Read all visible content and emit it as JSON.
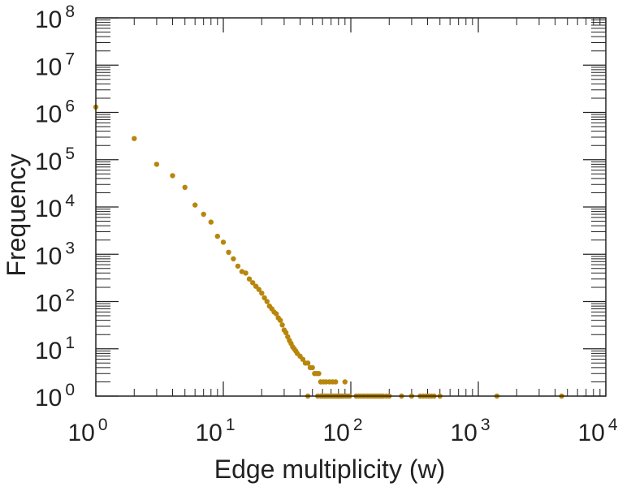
{
  "chart_data": {
    "type": "scatter",
    "title": "",
    "xlabel": "Edge multiplicity (w)",
    "ylabel": "Frequency",
    "x_scale": "log",
    "y_scale": "log",
    "xlim": [
      1,
      10000
    ],
    "ylim": [
      1,
      100000000
    ],
    "x_ticks": [
      {
        "base": "10",
        "exp": "0",
        "value": 1
      },
      {
        "base": "10",
        "exp": "1",
        "value": 10
      },
      {
        "base": "10",
        "exp": "2",
        "value": 100
      },
      {
        "base": "10",
        "exp": "3",
        "value": 1000
      },
      {
        "base": "10",
        "exp": "4",
        "value": 10000
      }
    ],
    "y_ticks": [
      {
        "base": "10",
        "exp": "0",
        "value": 1
      },
      {
        "base": "10",
        "exp": "1",
        "value": 10
      },
      {
        "base": "10",
        "exp": "2",
        "value": 100
      },
      {
        "base": "10",
        "exp": "3",
        "value": 1000
      },
      {
        "base": "10",
        "exp": "4",
        "value": 10000
      },
      {
        "base": "10",
        "exp": "5",
        "value": 100000
      },
      {
        "base": "10",
        "exp": "6",
        "value": 1000000
      },
      {
        "base": "10",
        "exp": "7",
        "value": 10000000
      },
      {
        "base": "10",
        "exp": "8",
        "value": 100000000
      }
    ],
    "grid": false,
    "marker_color": "#b8860b",
    "frame_color": "#222222",
    "points": [
      [
        1,
        1300000
      ],
      [
        2,
        280000
      ],
      [
        3,
        80000
      ],
      [
        4,
        46000
      ],
      [
        5,
        26000
      ],
      [
        6,
        11000
      ],
      [
        7,
        7000
      ],
      [
        8,
        4800
      ],
      [
        9,
        2400
      ],
      [
        10,
        1800
      ],
      [
        11,
        1100
      ],
      [
        12,
        800
      ],
      [
        13,
        560
      ],
      [
        14,
        430
      ],
      [
        15,
        400
      ],
      [
        16,
        300
      ],
      [
        17,
        250
      ],
      [
        18,
        210
      ],
      [
        19,
        180
      ],
      [
        20,
        150
      ],
      [
        21,
        120
      ],
      [
        22,
        100
      ],
      [
        23,
        80
      ],
      [
        24,
        70
      ],
      [
        25,
        60
      ],
      [
        26,
        55
      ],
      [
        27,
        45
      ],
      [
        28,
        40
      ],
      [
        29,
        32
      ],
      [
        30,
        25
      ],
      [
        31,
        22
      ],
      [
        32,
        18
      ],
      [
        33,
        15
      ],
      [
        34,
        13
      ],
      [
        35,
        11
      ],
      [
        36,
        10
      ],
      [
        37,
        9
      ],
      [
        38,
        8
      ],
      [
        40,
        7
      ],
      [
        42,
        6
      ],
      [
        44,
        5
      ],
      [
        46,
        5
      ],
      [
        48,
        4
      ],
      [
        50,
        4
      ],
      [
        52,
        3
      ],
      [
        54,
        3
      ],
      [
        56,
        3
      ],
      [
        58,
        2
      ],
      [
        61,
        2
      ],
      [
        64,
        2
      ],
      [
        68,
        2
      ],
      [
        72,
        2
      ],
      [
        76,
        2
      ],
      [
        80,
        1
      ],
      [
        90,
        2
      ],
      [
        46,
        1
      ],
      [
        55,
        1
      ],
      [
        58,
        1
      ],
      [
        60,
        1
      ],
      [
        62,
        1
      ],
      [
        64,
        1
      ],
      [
        66,
        1
      ],
      [
        68,
        1
      ],
      [
        70,
        1
      ],
      [
        72,
        1
      ],
      [
        74,
        1
      ],
      [
        76,
        1
      ],
      [
        78,
        1
      ],
      [
        80,
        1
      ],
      [
        82,
        1
      ],
      [
        84,
        1
      ],
      [
        86,
        1
      ],
      [
        88,
        1
      ],
      [
        92,
        1
      ],
      [
        95,
        1
      ],
      [
        98,
        1
      ],
      [
        110,
        1
      ],
      [
        115,
        1
      ],
      [
        120,
        1
      ],
      [
        125,
        1
      ],
      [
        130,
        1
      ],
      [
        135,
        1
      ],
      [
        140,
        1
      ],
      [
        145,
        1
      ],
      [
        150,
        1
      ],
      [
        155,
        1
      ],
      [
        160,
        1
      ],
      [
        165,
        1
      ],
      [
        170,
        1
      ],
      [
        175,
        1
      ],
      [
        180,
        1
      ],
      [
        190,
        1
      ],
      [
        200,
        1
      ],
      [
        250,
        1
      ],
      [
        300,
        1
      ],
      [
        350,
        1
      ],
      [
        370,
        1
      ],
      [
        390,
        1
      ],
      [
        410,
        1
      ],
      [
        430,
        1
      ],
      [
        450,
        1
      ],
      [
        500,
        1
      ],
      [
        1400,
        1
      ],
      [
        4500,
        1
      ]
    ]
  }
}
